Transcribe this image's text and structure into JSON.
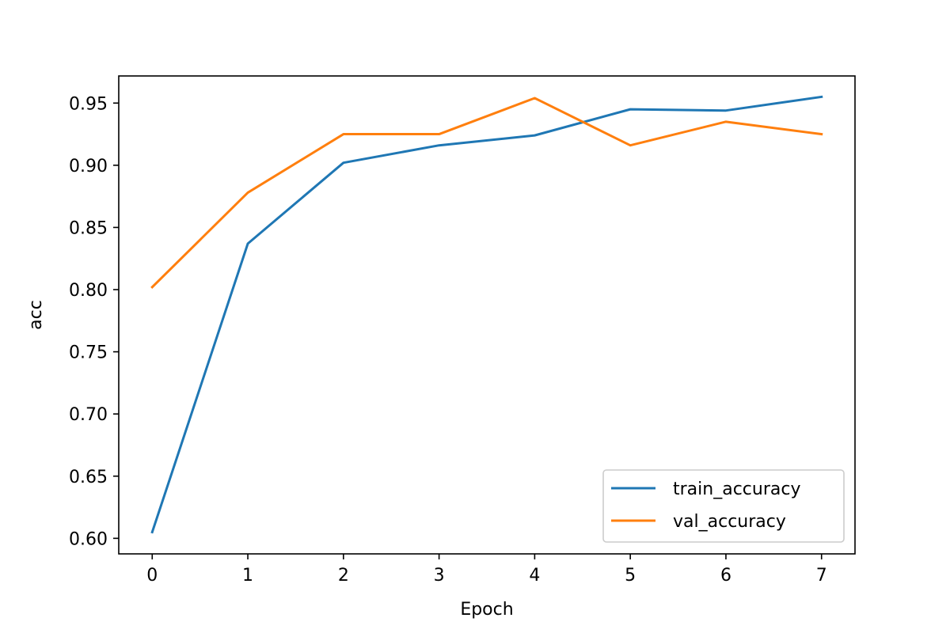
{
  "chart_data": {
    "type": "line",
    "title": "",
    "xlabel": "Epoch",
    "ylabel": "acc",
    "xlim": [
      -0.35,
      7.35
    ],
    "ylim": [
      0.5875,
      0.9718
    ],
    "xticks": [
      0,
      1,
      2,
      3,
      4,
      5,
      6,
      7
    ],
    "yticks": [
      0.6,
      0.65,
      0.7,
      0.75,
      0.8,
      0.85,
      0.9,
      0.95
    ],
    "ytick_labels": [
      "0.60",
      "0.65",
      "0.70",
      "0.75",
      "0.80",
      "0.85",
      "0.90",
      "0.95"
    ],
    "grid": false,
    "legend": "lower-right",
    "x": [
      0,
      1,
      2,
      3,
      4,
      5,
      6,
      7
    ],
    "series": [
      {
        "name": "train_accuracy",
        "color": "#1f77b4",
        "values": [
          0.605,
          0.837,
          0.902,
          0.916,
          0.924,
          0.945,
          0.944,
          0.955
        ]
      },
      {
        "name": "val_accuracy",
        "color": "#ff7f0e",
        "values": [
          0.802,
          0.878,
          0.925,
          0.925,
          0.954,
          0.916,
          0.935,
          0.925
        ]
      }
    ]
  }
}
